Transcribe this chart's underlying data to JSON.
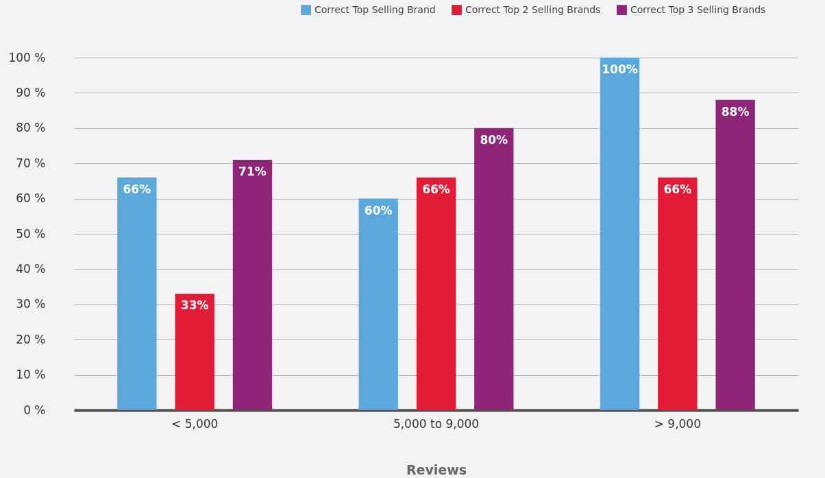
{
  "chart_data": {
    "type": "bar",
    "xlabel": "Reviews",
    "categories": [
      "< 5,000",
      "5,000 to 9,000",
      "> 9,000"
    ],
    "series": [
      {
        "name": "Correct Top Selling Brand",
        "color": "#5ba8dc",
        "values": [
          66,
          60,
          100
        ],
        "value_labels": [
          "66%",
          "60%",
          "100%"
        ]
      },
      {
        "name": "Correct Top 2 Selling Brands",
        "color": "#e31b36",
        "values": [
          33,
          66,
          66
        ],
        "value_labels": [
          "33%",
          "66%",
          "66%"
        ]
      },
      {
        "name": "Correct Top 3 Selling Brands",
        "color": "#8e2577",
        "values": [
          71,
          80,
          88
        ],
        "value_labels": [
          "71%",
          "80%",
          "88%"
        ]
      }
    ],
    "ylim": [
      0,
      100
    ],
    "yticks": [
      {
        "value": 0,
        "label": "0 %"
      },
      {
        "value": 10,
        "label": "10 %"
      },
      {
        "value": 20,
        "label": "20 %"
      },
      {
        "value": 30,
        "label": "30 %"
      },
      {
        "value": 40,
        "label": "40 %"
      },
      {
        "value": 50,
        "label": "50 %"
      },
      {
        "value": 60,
        "label": "60 %"
      },
      {
        "value": 70,
        "label": "70 %"
      },
      {
        "value": 80,
        "label": "80 %"
      },
      {
        "value": 90,
        "label": "90 %"
      },
      {
        "value": 100,
        "label": "100 %"
      }
    ],
    "grid": "y",
    "legend": "top right"
  }
}
